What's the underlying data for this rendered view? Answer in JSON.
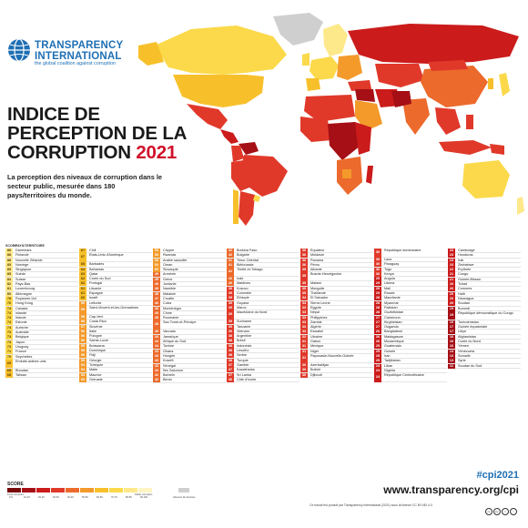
{
  "header": {
    "org_line1": "TRANSPARENCY",
    "org_line2": "INTERNATIONAL",
    "tagline": "the global coalition against corruption"
  },
  "title": {
    "line1": "INDICE DE",
    "line2": "PERCEPTION DE LA",
    "line3": "CORRUPTION",
    "year": "2021"
  },
  "subtitle": "La perception des niveaux de corruption dans le secteur public, mesurée dans 180 pays/territoires du monde.",
  "table": {
    "header_score": "SCORE",
    "header_country": "PAYS/TERRITOIRE",
    "columns": [
      [
        {
          "s": "88",
          "n": "Danemark"
        },
        {
          "s": "88",
          "n": "Finlande"
        },
        {
          "s": "88",
          "n": "Nouvelle Zélande"
        },
        {
          "s": "85",
          "n": "Norvège"
        },
        {
          "s": "85",
          "n": "Singapour"
        },
        {
          "s": "85",
          "n": "Suède"
        },
        {
          "s": "84",
          "n": "Suisse"
        },
        {
          "s": "82",
          "n": "Pays-Bas"
        },
        {
          "s": "81",
          "n": "Luxembourg"
        },
        {
          "s": "80",
          "n": "Allemagne"
        },
        {
          "s": "78",
          "n": "Royaume-Uni"
        },
        {
          "s": "76",
          "n": "Hong Kong"
        },
        {
          "s": "74",
          "n": "Canada"
        },
        {
          "s": "74",
          "n": "Islande"
        },
        {
          "s": "74",
          "n": "Irlande"
        },
        {
          "s": "74",
          "n": "Estonie"
        },
        {
          "s": "74",
          "n": "Autriche"
        },
        {
          "s": "73",
          "n": "Australie"
        },
        {
          "s": "73",
          "n": "Belgique"
        },
        {
          "s": "73",
          "n": "Japon"
        },
        {
          "s": "73",
          "n": "Uruguay"
        },
        {
          "s": "71",
          "n": "France"
        },
        {
          "s": "70",
          "n": "Seychelles"
        },
        {
          "s": "69",
          "n": "Émirats arabes unis",
          "t": true
        },
        {
          "s": "68",
          "n": "Bhoutan"
        },
        {
          "s": "68",
          "n": "Taïwan"
        }
      ],
      [
        {
          "s": "67",
          "n": "Chili"
        },
        {
          "s": "67",
          "n": "États-Unis d'Amérique",
          "t": true
        },
        {
          "s": "65",
          "n": "Barbades"
        },
        {
          "s": "64",
          "n": "Bahamas"
        },
        {
          "s": "63",
          "n": "Qatar"
        },
        {
          "s": "62",
          "n": "Corée du Sud"
        },
        {
          "s": "62",
          "n": "Portugal"
        },
        {
          "s": "61",
          "n": "Lituanie"
        },
        {
          "s": "61",
          "n": "Espagne"
        },
        {
          "s": "60",
          "n": "Israël"
        },
        {
          "s": "59",
          "n": "Lettonie"
        },
        {
          "s": "59",
          "n": "Saint-Vincent-et-les-Grenadines",
          "t": true
        },
        {
          "s": "58",
          "n": "Cap-Vert"
        },
        {
          "s": "58",
          "n": "Costa Rica"
        },
        {
          "s": "57",
          "n": "Slovénie"
        },
        {
          "s": "56",
          "n": "Italie"
        },
        {
          "s": "56",
          "n": "Pologne"
        },
        {
          "s": "56",
          "n": "Sainte-Lucie"
        },
        {
          "s": "55",
          "n": "Botswana"
        },
        {
          "s": "55",
          "n": "Dominique"
        },
        {
          "s": "55",
          "n": "Fidji"
        },
        {
          "s": "55",
          "n": "Géorgie"
        },
        {
          "s": "54",
          "n": "Tchéquie"
        },
        {
          "s": "54",
          "n": "Malte"
        },
        {
          "s": "54",
          "n": "Maurice"
        },
        {
          "s": "53",
          "n": "Grenade"
        }
      ],
      [
        {
          "s": "53",
          "n": "Chypre"
        },
        {
          "s": "53",
          "n": "Rwanda"
        },
        {
          "s": "53",
          "n": "Arabie saoudite"
        },
        {
          "s": "52",
          "n": "Oman"
        },
        {
          "s": "52",
          "n": "Slovaquie"
        },
        {
          "s": "49",
          "n": "Arménie"
        },
        {
          "s": "49",
          "n": "Grèce"
        },
        {
          "s": "49",
          "n": "Jordanie"
        },
        {
          "s": "49",
          "n": "Namibie"
        },
        {
          "s": "48",
          "n": "Malaisie"
        },
        {
          "s": "47",
          "n": "Croatie"
        },
        {
          "s": "46",
          "n": "Cuba"
        },
        {
          "s": "46",
          "n": "Monténégro"
        },
        {
          "s": "45",
          "n": "Chine"
        },
        {
          "s": "45",
          "n": "Roumanie"
        },
        {
          "s": "45",
          "n": "Sao Tomé-et-Principe",
          "t": true
        },
        {
          "s": "45",
          "n": "Vanuatu"
        },
        {
          "s": "44",
          "n": "Jamaïque"
        },
        {
          "s": "44",
          "n": "Afrique du Sud"
        },
        {
          "s": "44",
          "n": "Tunisie"
        },
        {
          "s": "43",
          "n": "Ghana"
        },
        {
          "s": "43",
          "n": "Hongrie"
        },
        {
          "s": "43",
          "n": "Koweït"
        },
        {
          "s": "43",
          "n": "Sénégal"
        },
        {
          "s": "43",
          "n": "Îles Salomon"
        },
        {
          "s": "42",
          "n": "Bahreïn"
        },
        {
          "s": "42",
          "n": "Bénin"
        }
      ],
      [
        {
          "s": "42",
          "n": "Burkina Faso"
        },
        {
          "s": "42",
          "n": "Bulgarie"
        },
        {
          "s": "41",
          "n": "Timor Oriental"
        },
        {
          "s": "41",
          "n": "Biélorussie"
        },
        {
          "s": "41",
          "n": "Trinité-et-Tobago",
          "t": true
        },
        {
          "s": "40",
          "n": "Inde"
        },
        {
          "s": "40",
          "n": "Maldives"
        },
        {
          "s": "39",
          "n": "Kosovo"
        },
        {
          "s": "39",
          "n": "Colombie"
        },
        {
          "s": "39",
          "n": "Éthiopie"
        },
        {
          "s": "39",
          "n": "Guyana"
        },
        {
          "s": "39",
          "n": "Maroc"
        },
        {
          "s": "39",
          "n": "Macédoine du Nord",
          "t": true
        },
        {
          "s": "39",
          "n": "Suriname"
        },
        {
          "s": "39",
          "n": "Tanzanie"
        },
        {
          "s": "39",
          "n": "Vietnam"
        },
        {
          "s": "38",
          "n": "Argentine"
        },
        {
          "s": "38",
          "n": "Brésil"
        },
        {
          "s": "38",
          "n": "Indonésie"
        },
        {
          "s": "38",
          "n": "Lesotho"
        },
        {
          "s": "38",
          "n": "Serbie"
        },
        {
          "s": "38",
          "n": "Turquie"
        },
        {
          "s": "37",
          "n": "Gambie"
        },
        {
          "s": "37",
          "n": "Kazakhstan"
        },
        {
          "s": "37",
          "n": "Sri Lanka"
        },
        {
          "s": "36",
          "n": "Côte d'Ivoire"
        }
      ],
      [
        {
          "s": "36",
          "n": "Équateur"
        },
        {
          "s": "36",
          "n": "Moldavie"
        },
        {
          "s": "36",
          "n": "Panama"
        },
        {
          "s": "36",
          "n": "Pérou"
        },
        {
          "s": "35",
          "n": "Albanie"
        },
        {
          "s": "35",
          "n": "Bosnie-Herzégovine",
          "t": true
        },
        {
          "s": "35",
          "n": "Malawi"
        },
        {
          "s": "35",
          "n": "Mongolie"
        },
        {
          "s": "35",
          "n": "Thaïlande"
        },
        {
          "s": "34",
          "n": "El Salvador"
        },
        {
          "s": "34",
          "n": "Sierra Leone"
        },
        {
          "s": "33",
          "n": "Égypte"
        },
        {
          "s": "33",
          "n": "Népal"
        },
        {
          "s": "33",
          "n": "Philippines"
        },
        {
          "s": "33",
          "n": "Zambie"
        },
        {
          "s": "33",
          "n": "Algérie"
        },
        {
          "s": "33",
          "n": "Eswatini"
        },
        {
          "s": "32",
          "n": "Ukraine"
        },
        {
          "s": "31",
          "n": "Gabon"
        },
        {
          "s": "31",
          "n": "Mexique"
        },
        {
          "s": "31",
          "n": "Niger"
        },
        {
          "s": "31",
          "n": "Papouasie-Nouvelle-Guinée",
          "t": true
        },
        {
          "s": "30",
          "n": "Azerbaïdjan"
        },
        {
          "s": "30",
          "n": "Bolivie"
        },
        {
          "s": "30",
          "n": "Djibouti"
        }
      ],
      [
        {
          "s": "30",
          "n": "République dominicaine",
          "t": true
        },
        {
          "s": "30",
          "n": "Laos"
        },
        {
          "s": "30",
          "n": "Paraguay"
        },
        {
          "s": "30",
          "n": "Togo"
        },
        {
          "s": "30",
          "n": "Kenya"
        },
        {
          "s": "29",
          "n": "Angola"
        },
        {
          "s": "29",
          "n": "Liberia"
        },
        {
          "s": "29",
          "n": "Mali"
        },
        {
          "s": "29",
          "n": "Russie"
        },
        {
          "s": "28",
          "n": "Mauritanie"
        },
        {
          "s": "28",
          "n": "Myanmar"
        },
        {
          "s": "28",
          "n": "Pakistan"
        },
        {
          "s": "28",
          "n": "Ouzbékistan"
        },
        {
          "s": "27",
          "n": "Cameroun"
        },
        {
          "s": "27",
          "n": "Kirghizistan"
        },
        {
          "s": "27",
          "n": "Ouganda"
        },
        {
          "s": "26",
          "n": "Bangladesh"
        },
        {
          "s": "26",
          "n": "Madagascar"
        },
        {
          "s": "26",
          "n": "Mozambique"
        },
        {
          "s": "25",
          "n": "Guatemala"
        },
        {
          "s": "25",
          "n": "Guinée"
        },
        {
          "s": "25",
          "n": "Iran"
        },
        {
          "s": "25",
          "n": "Tadjikistan"
        },
        {
          "s": "24",
          "n": "Liban"
        },
        {
          "s": "24",
          "n": "Nigéria"
        },
        {
          "s": "24",
          "n": "République Centrafricaine",
          "t": true
        }
      ],
      [
        {
          "s": "23",
          "n": "Cambodge"
        },
        {
          "s": "23",
          "n": "Honduras"
        },
        {
          "s": "23",
          "n": "Irak"
        },
        {
          "s": "23",
          "n": "Zimbabwe"
        },
        {
          "s": "22",
          "n": "Érythrée"
        },
        {
          "s": "21",
          "n": "Congo"
        },
        {
          "s": "21",
          "n": "Guinée-Bissau"
        },
        {
          "s": "20",
          "n": "Tchad"
        },
        {
          "s": "20",
          "n": "Comores"
        },
        {
          "s": "20",
          "n": "Haïti"
        },
        {
          "s": "20",
          "n": "Nicaragua"
        },
        {
          "s": "20",
          "n": "Soudan"
        },
        {
          "s": "19",
          "n": "Burundi"
        },
        {
          "s": "19",
          "n": "République démocratique du Congo",
          "t": true
        },
        {
          "s": "19",
          "n": "Turkménistan"
        },
        {
          "s": "17",
          "n": "Guinée équatoriale"
        },
        {
          "s": "17",
          "n": "Libye"
        },
        {
          "s": "16",
          "n": "Afghanistan"
        },
        {
          "s": "16",
          "n": "Corée du Nord"
        },
        {
          "s": "16",
          "n": "Yémen"
        },
        {
          "s": "14",
          "n": "Vénézuela"
        },
        {
          "s": "13",
          "n": "Somalie"
        },
        {
          "s": "13",
          "n": "Syrie"
        },
        {
          "s": "11",
          "n": "Soudan du Sud"
        }
      ]
    ]
  },
  "legend": {
    "label": "SCORE",
    "low_label": "Forte corruption",
    "high_label": "Faible corruption",
    "no_data_label": "Absence de données",
    "bins": [
      {
        "range": "0-9",
        "color": "#7a0a0a"
      },
      {
        "range": "10-19",
        "color": "#a50f15"
      },
      {
        "range": "20-29",
        "color": "#cb1b1b"
      },
      {
        "range": "30-39",
        "color": "#e0392a"
      },
      {
        "range": "40-49",
        "color": "#ec6a2c"
      },
      {
        "range": "50-59",
        "color": "#f39a2b"
      },
      {
        "range": "60-69",
        "color": "#f7c02b"
      },
      {
        "range": "70-79",
        "color": "#fbd94a"
      },
      {
        "range": "80-89",
        "color": "#fde98a"
      },
      {
        "range": "90-100",
        "color": "#fef4c4"
      }
    ],
    "no_data_color": "#cfcfcf"
  },
  "footer": {
    "hashtag": "#cpi2021",
    "website": "www.transparency.org/cpi",
    "credit": "Ce travail est produit par Transparency International (2021) sous la licence CC BY-ND 4.0."
  }
}
